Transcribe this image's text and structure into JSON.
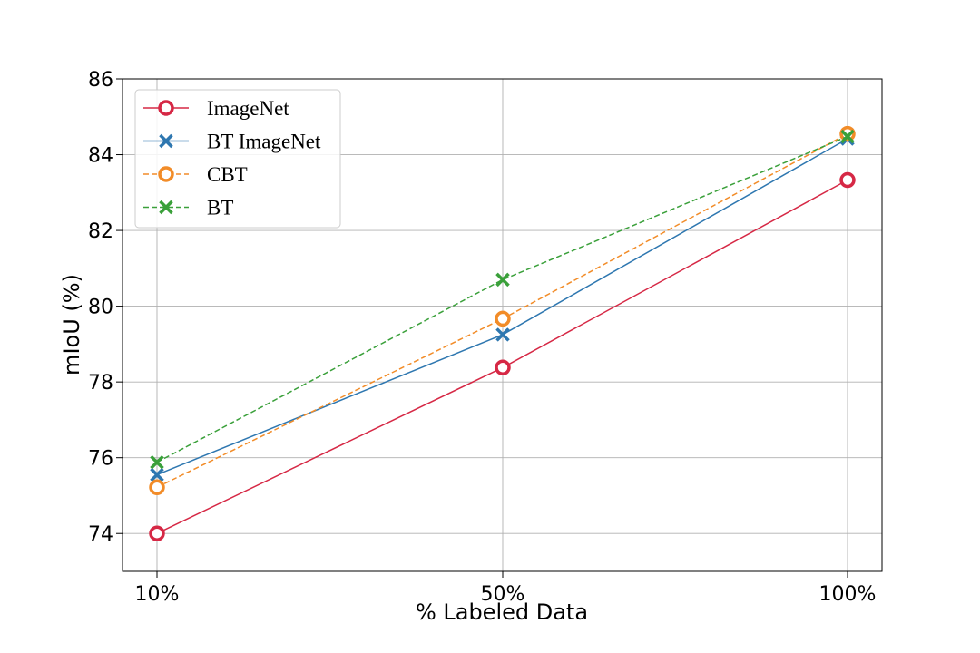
{
  "chart_data": {
    "type": "line",
    "categories": [
      "10%",
      "50%",
      "100%"
    ],
    "xlabel": "% Labeled Data",
    "ylabel": "mIoU (%)",
    "ylim": [
      73,
      86
    ],
    "yticks": [
      74,
      76,
      78,
      80,
      82,
      84,
      86
    ],
    "grid": true,
    "legend_position": "top-left",
    "series": [
      {
        "name": "ImageNet",
        "values": [
          74.0,
          78.38,
          83.33
        ],
        "color": "#d62845",
        "line": "solid",
        "marker": "circle-open"
      },
      {
        "name": "BT ImageNet",
        "values": [
          75.55,
          79.25,
          84.42
        ],
        "color": "#2e77b0",
        "line": "solid",
        "marker": "x"
      },
      {
        "name": "CBT",
        "values": [
          75.22,
          79.67,
          84.55
        ],
        "color": "#f28c28",
        "line": "dashed",
        "marker": "circle-open"
      },
      {
        "name": "BT",
        "values": [
          75.88,
          80.7,
          84.48
        ],
        "color": "#3aa03a",
        "line": "dashed",
        "marker": "x"
      }
    ]
  }
}
